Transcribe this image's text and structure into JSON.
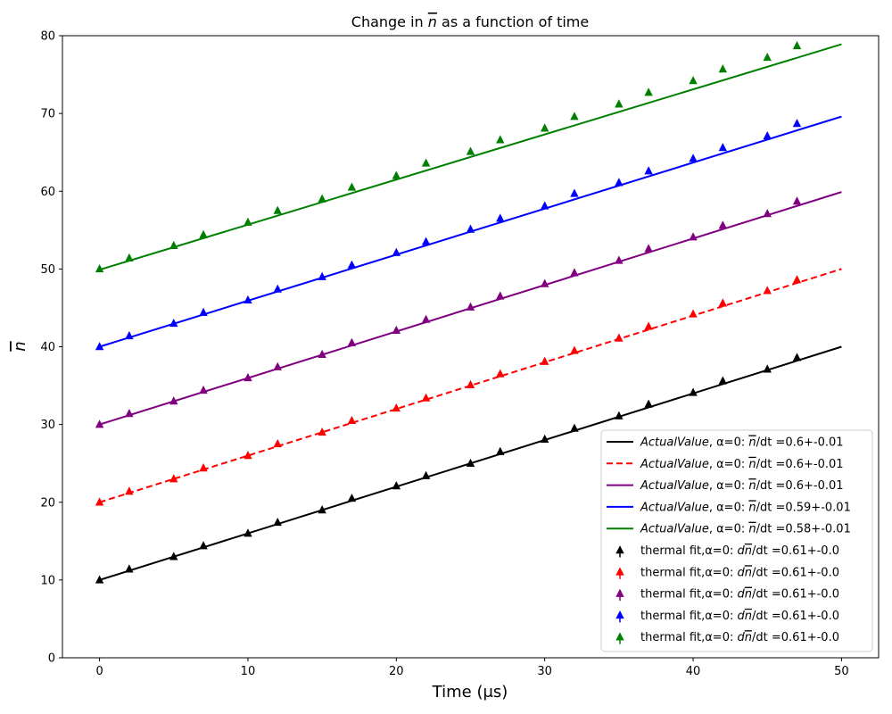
{
  "chart_data": {
    "type": "line",
    "title_parts": {
      "before": "Change in ",
      "symbol": "n",
      "after": " as a function of time"
    },
    "xlabel": "Time (μs)",
    "ylabel_symbol": "n",
    "xlim": [
      -2.5,
      52.5
    ],
    "ylim": [
      0,
      80
    ],
    "xticks": [
      0,
      10,
      20,
      30,
      40,
      50
    ],
    "yticks": [
      0,
      10,
      20,
      30,
      40,
      50,
      60,
      70,
      80
    ],
    "grid": false,
    "legend_position": "lower-right",
    "lines": [
      {
        "color": "#000000",
        "dash": "solid",
        "x": [
          0,
          50
        ],
        "y": [
          10,
          40
        ],
        "legend": {
          "italic": "ActualValue",
          "middle": ", α=0: ",
          "symbol": "n",
          "tail": "/dt =0.6+-0.01"
        }
      },
      {
        "color": "#ff0000",
        "dash": "dashed",
        "x": [
          0,
          50
        ],
        "y": [
          20,
          50
        ],
        "legend": {
          "italic": "ActualValue",
          "middle": ", α=0: ",
          "symbol": "n",
          "tail": "/dt =0.6+-0.01"
        }
      },
      {
        "color": "#800080",
        "dash": "solid",
        "x": [
          0,
          50
        ],
        "y": [
          30,
          59.9
        ],
        "legend": {
          "italic": "ActualValue",
          "middle": ", α=0: ",
          "symbol": "n",
          "tail": "/dt =0.6+-0.01"
        }
      },
      {
        "color": "#0000ff",
        "dash": "solid",
        "x": [
          0,
          50
        ],
        "y": [
          40,
          69.6
        ],
        "legend": {
          "italic": "ActualValue",
          "middle": ", α=0: ",
          "symbol": "n",
          "tail": "/dt =0.59+-0.01"
        }
      },
      {
        "color": "#008000",
        "dash": "solid",
        "x": [
          0,
          50
        ],
        "y": [
          49.9,
          78.9
        ],
        "legend": {
          "italic": "ActualValue",
          "middle": ", α=0: ",
          "symbol": "n",
          "tail": "/dt =0.58+-0.01"
        }
      }
    ],
    "scatter_x": [
      0,
      2,
      5,
      7,
      10,
      12,
      15,
      17,
      20,
      22,
      25,
      27,
      30,
      32,
      35,
      37,
      40,
      42,
      45,
      47
    ],
    "scatter": [
      {
        "color": "#000000",
        "y": [
          10.0,
          11.4,
          13.0,
          14.4,
          16.0,
          17.4,
          19.0,
          20.5,
          22.1,
          23.4,
          25.0,
          26.5,
          28.1,
          29.5,
          31.1,
          32.6,
          34.1,
          35.6,
          37.1,
          38.6
        ],
        "legend": {
          "prefix": "thermal fit,α=0: ",
          "italic": "d",
          "symbol": "n",
          "tail": "/dt =0.61+-0.0"
        }
      },
      {
        "color": "#ff0000",
        "y": [
          20.0,
          21.4,
          23.0,
          24.4,
          26.0,
          27.5,
          29.0,
          30.5,
          32.1,
          33.4,
          35.1,
          36.5,
          38.1,
          39.5,
          41.1,
          42.6,
          44.2,
          45.6,
          47.2,
          48.6
        ],
        "legend": {
          "prefix": "thermal fit,α=0: ",
          "italic": "d",
          "symbol": "n",
          "tail": "/dt =0.61+-0.0"
        }
      },
      {
        "color": "#800080",
        "y": [
          30.0,
          31.4,
          33.0,
          34.4,
          36.0,
          37.4,
          39.0,
          40.5,
          42.1,
          43.5,
          45.1,
          46.5,
          48.1,
          49.5,
          51.1,
          52.6,
          54.1,
          55.6,
          57.1,
          58.7
        ],
        "legend": {
          "prefix": "thermal fit,α=0: ",
          "italic": "d",
          "symbol": "n",
          "tail": "/dt =0.61+-0.0"
        }
      },
      {
        "color": "#0000ff",
        "y": [
          40.0,
          41.4,
          43.0,
          44.4,
          46.0,
          47.4,
          49.0,
          50.5,
          52.1,
          53.5,
          55.1,
          56.5,
          58.1,
          59.7,
          61.1,
          62.6,
          64.2,
          65.6,
          67.1,
          68.7
        ],
        "legend": {
          "prefix": "thermal fit,α=0: ",
          "italic": "d",
          "symbol": "n",
          "tail": "/dt =0.61+-0.0"
        }
      },
      {
        "color": "#008000",
        "y": [
          50.0,
          51.4,
          53.0,
          54.4,
          56.0,
          57.5,
          59.0,
          60.5,
          62.0,
          63.6,
          65.1,
          66.6,
          68.1,
          69.6,
          71.2,
          72.7,
          74.2,
          75.7,
          77.2,
          78.7
        ],
        "legend": {
          "prefix": "thermal fit,α=0: ",
          "italic": "d",
          "symbol": "n",
          "tail": "/dt =0.61+-0.0"
        }
      }
    ]
  }
}
